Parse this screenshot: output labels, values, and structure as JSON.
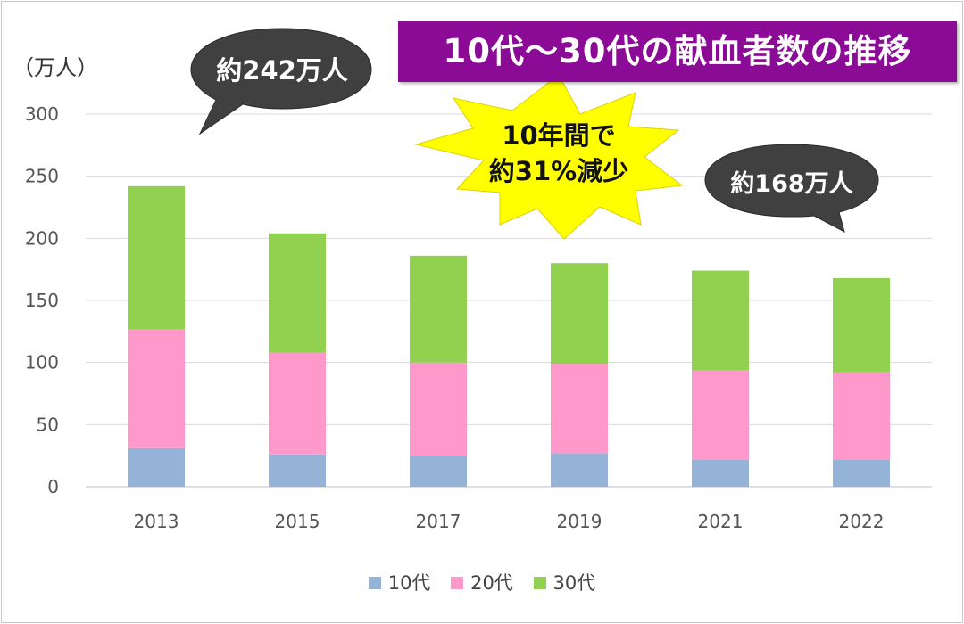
{
  "title": "10代〜30代の献血者数の推移",
  "unit_label": "（万人）",
  "callouts": {
    "start_value": "約242万人",
    "end_value": "約168万人",
    "change_line1": "10年間で",
    "change_line2": "約31%減少"
  },
  "colors": {
    "10代": "#95b3d7",
    "20代": "#ff99cc",
    "30代": "#92d050",
    "title_bg": "#8b0a96",
    "bubble": "#404040",
    "burst": "#ffff00"
  },
  "chart_data": {
    "type": "bar",
    "stacked": true,
    "categories": [
      "2013",
      "2015",
      "2017",
      "2019",
      "2021",
      "2022"
    ],
    "series": [
      {
        "name": "10代",
        "values": [
          31,
          26,
          25,
          27,
          22,
          22
        ]
      },
      {
        "name": "20代",
        "values": [
          96,
          82,
          75,
          72,
          72,
          70
        ]
      },
      {
        "name": "30代",
        "values": [
          115,
          96,
          86,
          81,
          80,
          76
        ]
      }
    ],
    "ylim": [
      0,
      300
    ],
    "yticks": [
      0,
      50,
      100,
      150,
      200,
      250,
      300
    ],
    "grid": true,
    "legend_position": "bottom"
  }
}
